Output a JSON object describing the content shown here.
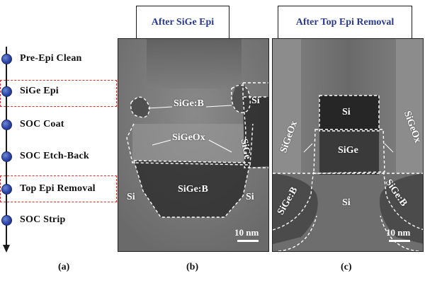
{
  "process_flow": {
    "steps": [
      {
        "label": "Pre-Epi Clean"
      },
      {
        "label": "SiGe Epi"
      },
      {
        "label": "SOC Coat"
      },
      {
        "label": "SOC Etch-Back"
      },
      {
        "label": "Top Epi Removal"
      },
      {
        "label": "SOC Strip"
      }
    ],
    "highlighted": [
      "SiGe Epi",
      "Top Epi Removal"
    ],
    "colors": {
      "dot": "#2c45a8",
      "highlight": "#d63030"
    }
  },
  "panel_b": {
    "title": "After SiGe Epi",
    "labels": {
      "sige_b_top": "SiGe:B",
      "si_right": "Si",
      "sigeox": "SiGeOx",
      "sige": "SiGe",
      "sige_b_bottom": "SiGe:B",
      "si_left": "Si",
      "si_bottom_right": "Si"
    },
    "scale": "10 nm",
    "caption": "(b)"
  },
  "panel_c": {
    "title": "After Top Epi Removal",
    "labels": {
      "si_top": "Si",
      "sigeox_left": "SiGeOx",
      "sigeox_right": "SiGeOx",
      "sige": "SiGe",
      "sige_b_left": "SiGe:B",
      "sige_b_right": "SiGe:B",
      "si_bottom": "Si"
    },
    "scale": "10 nm",
    "caption": "(c)"
  },
  "panel_a": {
    "caption": "(a)"
  },
  "colors": {
    "title_text": "#2a3a8c"
  }
}
